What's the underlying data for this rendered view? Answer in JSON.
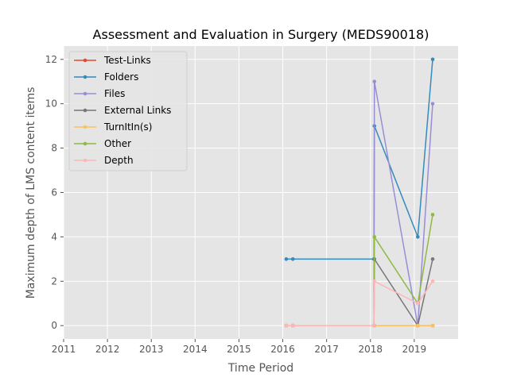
{
  "chart_data": {
    "type": "line",
    "title": "Assessment and Evaluation in Surgery (MEDS90018)",
    "xlabel": "Time Period",
    "ylabel": "Maximum depth of LMS content items",
    "xlim": [
      2011.0,
      2020.0
    ],
    "ylim": [
      -0.6,
      12.6
    ],
    "xticks": [
      2011,
      2012,
      2013,
      2014,
      2015,
      2016,
      2017,
      2018,
      2019
    ],
    "yticks": [
      0,
      2,
      4,
      6,
      8,
      10,
      12
    ],
    "grid": true,
    "legend_position": "top-left",
    "x": [
      2016.08,
      2016.23,
      2018.08,
      2018.09,
      2019.08,
      2019.42
    ],
    "series": [
      {
        "name": "Test-Links",
        "color": "#E24A33",
        "values": [
          0,
          0,
          0,
          0,
          0,
          0
        ]
      },
      {
        "name": "Folders",
        "color": "#348ABD",
        "values": [
          3,
          3,
          3,
          9,
          4,
          12
        ]
      },
      {
        "name": "Files",
        "color": "#988ED5",
        "values": [
          0,
          0,
          0,
          11,
          0,
          10
        ]
      },
      {
        "name": "External Links",
        "color": "#777777",
        "values": [
          0,
          0,
          0,
          3,
          0,
          3
        ]
      },
      {
        "name": "TurnItIn(s)",
        "color": "#FBC15E",
        "values": [
          0,
          0,
          0,
          0,
          0,
          0
        ]
      },
      {
        "name": "Other",
        "color": "#8EBA42",
        "values": [
          0,
          0,
          0,
          4,
          1,
          5
        ]
      },
      {
        "name": "Depth",
        "color": "#FFB5B8",
        "values": [
          0,
          0,
          0,
          2,
          1,
          2
        ]
      }
    ]
  }
}
